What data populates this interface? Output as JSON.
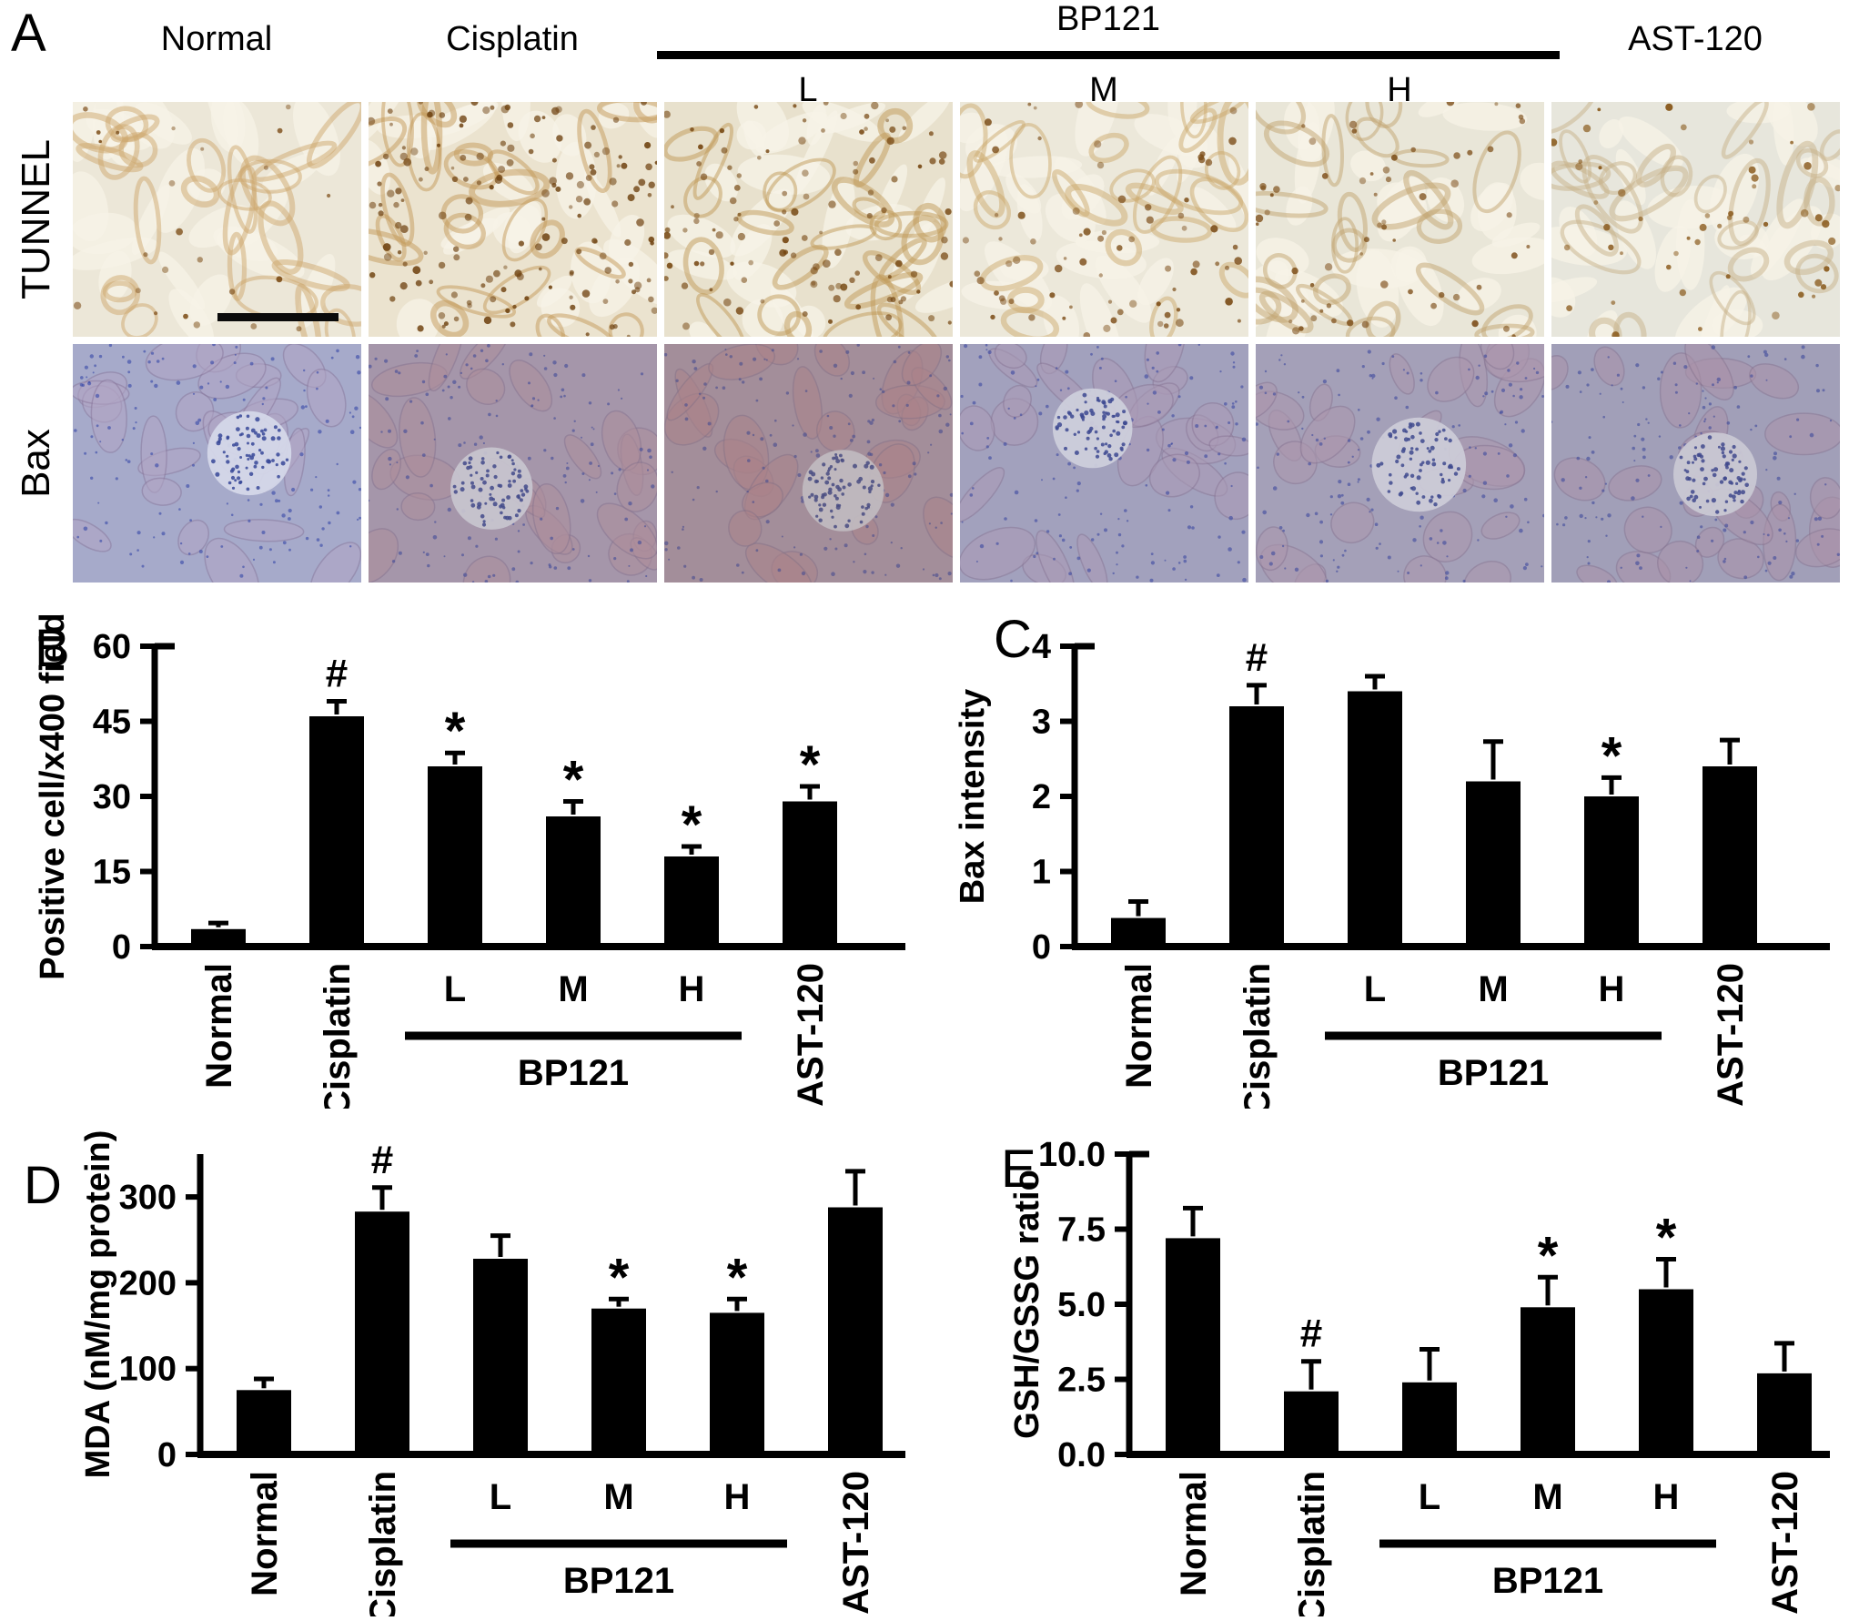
{
  "panelA": {
    "label": "A",
    "group_label": "BP121",
    "columns": [
      "Normal",
      "Cisplatin",
      "L",
      "M",
      "H",
      "AST-120"
    ],
    "rows": [
      "TUNNEL",
      "Bax"
    ],
    "stain_colors": {
      "tunnel_positive": "#7a4a14",
      "bax_hematoxylin": "#3b4db0"
    },
    "tiles": [
      {
        "row": "TUNNEL",
        "col": "Normal",
        "bg": "#ece7d8",
        "accent": "#cda86e",
        "dot": "#7a4a14",
        "density": 24,
        "wash": 0,
        "scale_bar": true
      },
      {
        "row": "TUNNEL",
        "col": "Cisplatin",
        "bg": "#ebe3cf",
        "accent": "#c49a5a",
        "dot": "#6f4210",
        "density": 160,
        "wash": 0,
        "scale_bar": false
      },
      {
        "row": "TUNNEL",
        "col": "L",
        "bg": "#e8e1cd",
        "accent": "#bf9a58",
        "dot": "#74450f",
        "density": 110,
        "wash": 0,
        "scale_bar": false
      },
      {
        "row": "TUNNEL",
        "col": "M",
        "bg": "#ece8da",
        "accent": "#cba96e",
        "dot": "#7a4a14",
        "density": 72,
        "wash": 0,
        "scale_bar": false
      },
      {
        "row": "TUNNEL",
        "col": "H",
        "bg": "#e9e6d8",
        "accent": "#c2a470",
        "dot": "#7a4a14",
        "density": 60,
        "wash": 0,
        "scale_bar": false
      },
      {
        "row": "TUNNEL",
        "col": "AST-120",
        "bg": "#e7e6dc",
        "accent": "#c8b289",
        "dot": "#83500f",
        "density": 50,
        "wash": 0,
        "scale_bar": false
      },
      {
        "row": "Bax",
        "col": "Normal",
        "bg": "#a9aed2",
        "accent": "#b5aacd",
        "dot": "#3b4db0",
        "density": 150,
        "wash": 0.05,
        "scale_bar": false
      },
      {
        "row": "Bax",
        "col": "Cisplatin",
        "bg": "#b0a5c6",
        "accent": "#ba9cb4",
        "dot": "#3b4db0",
        "density": 150,
        "wash": 0.2,
        "scale_bar": false
      },
      {
        "row": "Bax",
        "col": "L",
        "bg": "#b2a2c0",
        "accent": "#bd94aa",
        "dot": "#3b4db0",
        "density": 150,
        "wash": 0.28,
        "scale_bar": false
      },
      {
        "row": "Bax",
        "col": "M",
        "bg": "#a8abd0",
        "accent": "#b2a4c8",
        "dot": "#3b4db0",
        "density": 150,
        "wash": 0.12,
        "scale_bar": false
      },
      {
        "row": "Bax",
        "col": "H",
        "bg": "#abacce",
        "accent": "#b5a2c2",
        "dot": "#3b4db0",
        "density": 150,
        "wash": 0.15,
        "scale_bar": false
      },
      {
        "row": "Bax",
        "col": "AST-120",
        "bg": "#a9aed2",
        "accent": "#b49fc0",
        "dot": "#3b4db0",
        "density": 150,
        "wash": 0.17,
        "scale_bar": false
      }
    ]
  },
  "chart_data": [
    {
      "type": "bar",
      "panel_label": "B",
      "title": "",
      "xlabel": "",
      "ylabel": "Positive cell/x400 field",
      "ylim": [
        0,
        60
      ],
      "yticks": [
        0,
        15,
        30,
        45,
        60
      ],
      "ytick_labels": [
        "0",
        "15",
        "30",
        "45",
        "60"
      ],
      "categories": [
        "Normal",
        "Cisplatin",
        "L",
        "M",
        "H",
        "AST-120"
      ],
      "values": [
        3.5,
        46,
        36,
        26,
        18,
        29
      ],
      "errors": [
        1.2,
        3,
        2.7,
        3,
        2,
        3
      ],
      "sig_markers": [
        "",
        "#",
        "*",
        "*",
        "*",
        "*"
      ],
      "group": {
        "label": "BP121",
        "from": 2,
        "to": 4
      },
      "bar_color": "#000000",
      "grid": false
    },
    {
      "type": "bar",
      "panel_label": "C",
      "title": "",
      "xlabel": "",
      "ylabel": "Bax intensity",
      "ylim": [
        0,
        4
      ],
      "yticks": [
        0,
        1,
        2,
        3,
        4
      ],
      "ytick_labels": [
        "0",
        "1",
        "2",
        "3",
        "4"
      ],
      "categories": [
        "Normal",
        "Cisplatin",
        "L",
        "M",
        "H",
        "AST-120"
      ],
      "values": [
        0.38,
        3.2,
        3.4,
        2.2,
        2.0,
        2.4
      ],
      "errors": [
        0.22,
        0.28,
        0.2,
        0.53,
        0.25,
        0.35
      ],
      "sig_markers": [
        "",
        "#",
        "",
        "",
        "*",
        ""
      ],
      "group": {
        "label": "BP121",
        "from": 2,
        "to": 4
      },
      "bar_color": "#000000",
      "grid": false
    },
    {
      "type": "bar",
      "panel_label": "D",
      "title": "",
      "xlabel": "",
      "ylabel": "MDA (nM/mg protein)",
      "ylim": [
        0,
        350
      ],
      "yticks": [
        0,
        100,
        200,
        300
      ],
      "ytick_labels": [
        "0",
        "100",
        "200",
        "300"
      ],
      "categories": [
        "Normal",
        "Cisplatin",
        "L",
        "M",
        "H",
        "AST-120"
      ],
      "values": [
        75,
        283,
        228,
        170,
        165,
        288
      ],
      "errors": [
        13,
        28,
        27,
        11,
        16,
        42
      ],
      "sig_markers": [
        "",
        "#",
        "",
        "*",
        "*",
        ""
      ],
      "group": {
        "label": "BP121",
        "from": 2,
        "to": 4
      },
      "bar_color": "#000000",
      "grid": false
    },
    {
      "type": "bar",
      "panel_label": "E",
      "title": "",
      "xlabel": "",
      "ylabel": "GSH/GSSG ratio",
      "ylim": [
        0,
        10
      ],
      "yticks": [
        0,
        2.5,
        5,
        7.5,
        10
      ],
      "ytick_labels": [
        "0.0",
        "2.5",
        "5.0",
        "7.5",
        "10.0"
      ],
      "categories": [
        "Normal",
        "Cisplatin",
        "L",
        "M",
        "H",
        "AST-120"
      ],
      "values": [
        7.2,
        2.1,
        2.4,
        4.9,
        5.5,
        2.7
      ],
      "errors": [
        1.0,
        1.0,
        1.1,
        1.0,
        1.0,
        1.0
      ],
      "sig_markers": [
        "",
        "#",
        "",
        "*",
        "*",
        ""
      ],
      "group": {
        "label": "BP121",
        "from": 2,
        "to": 4
      },
      "bar_color": "#000000",
      "grid": false
    }
  ]
}
